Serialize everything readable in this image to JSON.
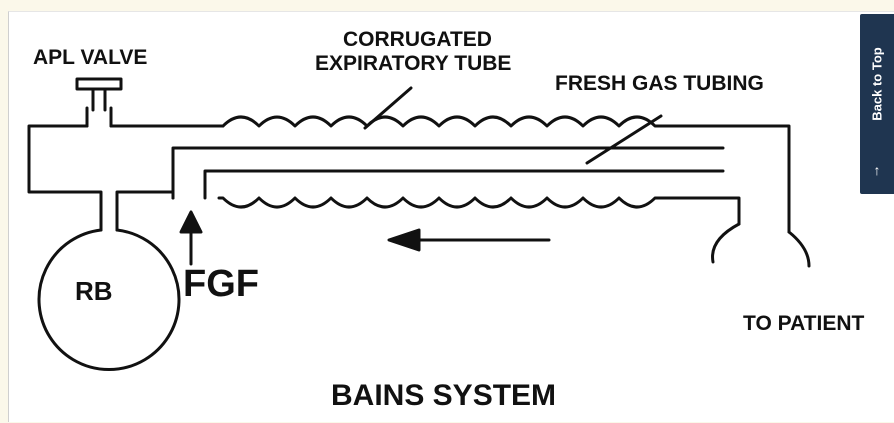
{
  "diagram": {
    "labels": {
      "apl_valve": "APL VALVE",
      "corrugated_line1": "CORRUGATED",
      "corrugated_line2": "EXPIRATORY TUBE",
      "fresh_gas_tubing": "FRESH GAS TUBING",
      "rb": "RB",
      "fgf": "FGF",
      "to_patient": "TO PATIENT",
      "title": "BAINS SYSTEM"
    }
  },
  "back_to_top": {
    "label": "Back to Top",
    "arrow": "↑",
    "icon": "arrow-up-icon",
    "bg_color": "#1f3550"
  }
}
